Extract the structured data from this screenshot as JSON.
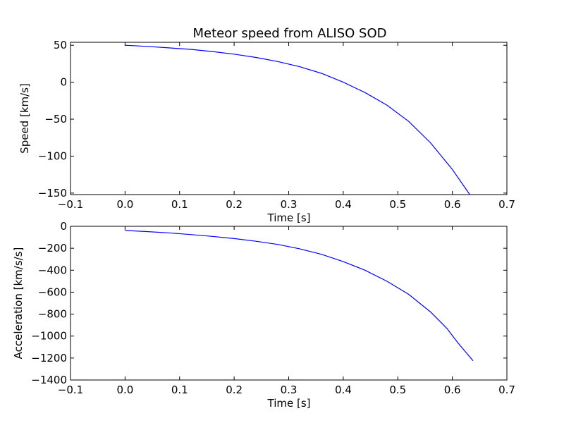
{
  "chart_data": [
    {
      "type": "line",
      "title": "Meteor speed from  ALISO SOD",
      "xlabel": "Time [s]",
      "ylabel": "Speed [km/s]",
      "xlim": [
        -0.1,
        0.7
      ],
      "ylim": [
        -152,
        54
      ],
      "x_ticks": [
        -0.1,
        0.0,
        0.1,
        0.2,
        0.3,
        0.4,
        0.5,
        0.6,
        0.7
      ],
      "y_ticks": [
        50,
        0,
        -50,
        -100,
        -150
      ],
      "x_tick_labels": [
        "−0.1",
        "0.0",
        "0.1",
        "0.2",
        "0.3",
        "0.4",
        "0.5",
        "0.6",
        "0.7"
      ],
      "y_tick_labels": [
        "50",
        "0",
        "−50",
        "−100",
        "−150"
      ],
      "grid": false,
      "series": [
        {
          "color": "#0000ff",
          "x": [
            0.0,
            0.04,
            0.08,
            0.12,
            0.16,
            0.2,
            0.24,
            0.28,
            0.32,
            0.36,
            0.4,
            0.44,
            0.48,
            0.52,
            0.56,
            0.6,
            0.632
          ],
          "y": [
            50,
            48.5,
            46.5,
            44.5,
            41.5,
            38,
            33.5,
            28,
            21,
            12,
            0,
            -14,
            -31,
            -53,
            -82,
            -118,
            -152
          ]
        }
      ]
    },
    {
      "type": "line",
      "title": "",
      "xlabel": "Time [s]",
      "ylabel": "Acceleration [km/s/s]",
      "xlim": [
        -0.1,
        0.7
      ],
      "ylim": [
        -1400,
        0
      ],
      "x_ticks": [
        -0.1,
        0.0,
        0.1,
        0.2,
        0.3,
        0.4,
        0.5,
        0.6,
        0.7
      ],
      "y_ticks": [
        0,
        -200,
        -400,
        -600,
        -800,
        -1000,
        -1200,
        -1400
      ],
      "x_tick_labels": [
        "−0.1",
        "0.0",
        "0.1",
        "0.2",
        "0.3",
        "0.4",
        "0.5",
        "0.6",
        "0.7"
      ],
      "y_tick_labels": [
        "0",
        "−200",
        "−400",
        "−600",
        "−800",
        "−1000",
        "−1200",
        "−1400"
      ],
      "grid": false,
      "series": [
        {
          "color": "#0000ff",
          "x": [
            0.0,
            0.04,
            0.08,
            0.12,
            0.16,
            0.2,
            0.24,
            0.28,
            0.32,
            0.36,
            0.4,
            0.44,
            0.48,
            0.52,
            0.56,
            0.59,
            0.61,
            0.638
          ],
          "y": [
            -38,
            -48,
            -60,
            -75,
            -92,
            -112,
            -136,
            -165,
            -205,
            -255,
            -322,
            -400,
            -500,
            -620,
            -780,
            -930,
            -1060,
            -1225
          ]
        }
      ]
    }
  ]
}
